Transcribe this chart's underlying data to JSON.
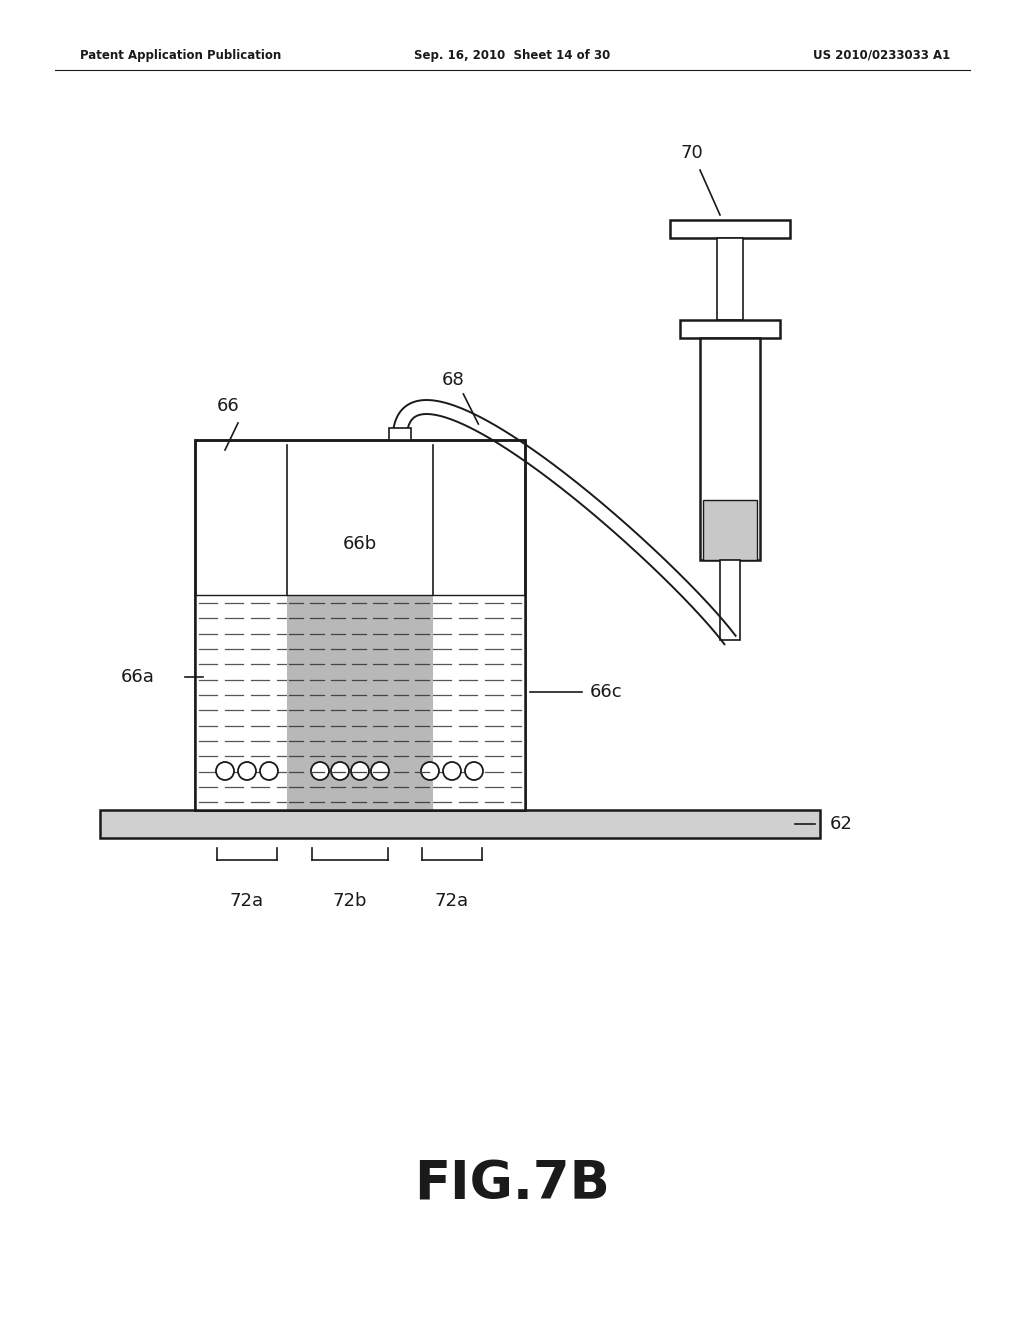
{
  "bg_color": "#ffffff",
  "header_left": "Patent Application Publication",
  "header_mid": "Sep. 16, 2010  Sheet 14 of 30",
  "header_right": "US 2010/0233033 A1",
  "figure_label": "FIG.7B",
  "black": "#1a1a1a",
  "gray_light": "#cccccc",
  "gray_dark": "#aaaaaa",
  "lw_main": 1.8,
  "lw_thin": 1.2,
  "fontsize_label": 13,
  "fontsize_header": 8.5,
  "fontsize_fig": 38
}
